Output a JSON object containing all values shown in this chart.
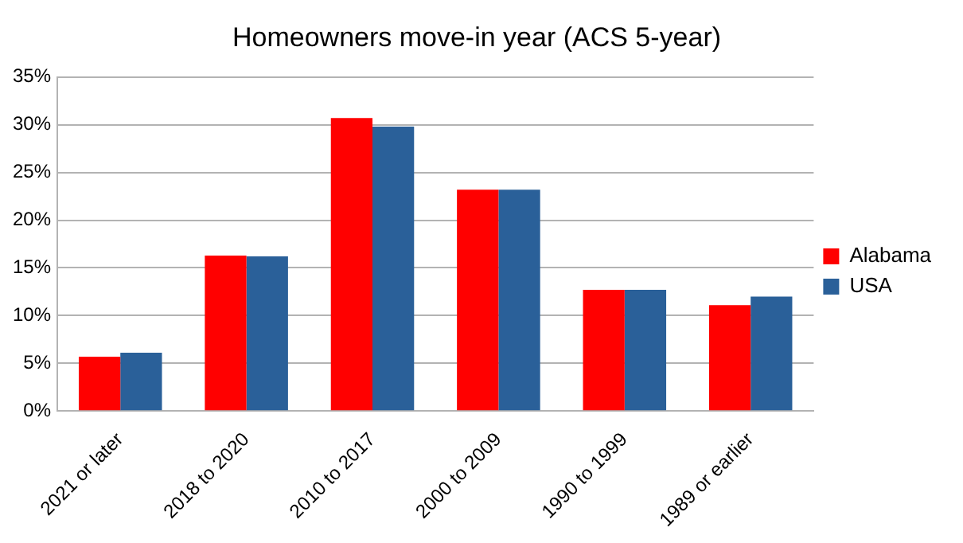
{
  "chart_data": {
    "type": "bar",
    "title": "Homeowners move-in year (ACS 5-year)",
    "categories": [
      "2021 or later",
      "2018 to 2020",
      "2010 to 2017",
      "2000 to 2009",
      "1990 to 1999",
      "1989 or earlier"
    ],
    "series": [
      {
        "name": "Alabama",
        "color": "#ff0000",
        "values": [
          5.7,
          16.3,
          30.7,
          23.2,
          12.7,
          11.1
        ]
      },
      {
        "name": "USA",
        "color": "#2a6099",
        "values": [
          6.1,
          16.2,
          29.8,
          23.2,
          12.7,
          12.0
        ]
      }
    ],
    "ylim": [
      0,
      35
    ],
    "yticks": [
      {
        "value": 0,
        "label": "0%"
      },
      {
        "value": 5,
        "label": "5%"
      },
      {
        "value": 10,
        "label": "10%"
      },
      {
        "value": 15,
        "label": "15%"
      },
      {
        "value": 20,
        "label": "20%"
      },
      {
        "value": 25,
        "label": "25%"
      },
      {
        "value": 30,
        "label": "30%"
      },
      {
        "value": 35,
        "label": "35%"
      }
    ],
    "grid": "y",
    "legend": "right"
  }
}
